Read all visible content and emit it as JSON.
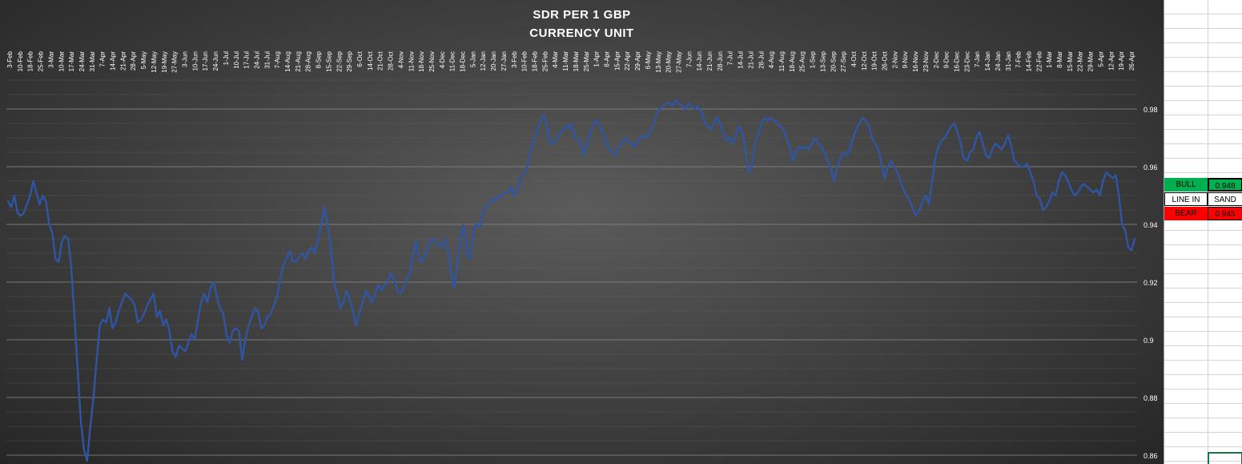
{
  "chart_data": {
    "type": "line",
    "title": "SDR PER 1 GBP",
    "subtitle": "CURRENCY UNIT",
    "xlabel": "",
    "ylabel": "",
    "ylim": [
      0.86,
      0.99
    ],
    "y_ticks": [
      "0.86",
      "0.88",
      "0.9",
      "0.92",
      "0.94",
      "0.96",
      "0.98"
    ],
    "x_ticks": [
      "3-Feb",
      "10-Feb",
      "18-Feb",
      "25-Feb",
      "3-Mar",
      "10-Mar",
      "17-Mar",
      "24-Mar",
      "31-Mar",
      "7-Apr",
      "14-Apr",
      "21-Apr",
      "28-Apr",
      "5-May",
      "12-May",
      "19-May",
      "27-May",
      "3-Jun",
      "10-Jun",
      "17-Jun",
      "24-Jun",
      "1-Jul",
      "10-Jul",
      "17-Jul",
      "24-Jul",
      "31-Jul",
      "7-Aug",
      "14-Aug",
      "21-Aug",
      "28-Aug",
      "8-Sep",
      "15-Sep",
      "22-Sep",
      "29-Sep",
      "6-Oct",
      "14-Oct",
      "21-Oct",
      "28-Oct",
      "4-Nov",
      "11-Nov",
      "18-Nov",
      "25-Nov",
      "4-Dec",
      "11-Dec",
      "18-Dec",
      "5-Jan",
      "12-Jan",
      "20-Jan",
      "27-Jan",
      "3-Feb",
      "10-Feb",
      "18-Feb",
      "25-Feb",
      "4-Mar",
      "11-Mar",
      "18-Mar",
      "25-Mar",
      "1-Apr",
      "8-Apr",
      "15-Apr",
      "22-Apr",
      "29-Apr",
      "6-May",
      "13-May",
      "20-May",
      "27-May",
      "7-Jun",
      "14-Jun",
      "21-Jun",
      "28-Jun",
      "7-Jul",
      "14-Jul",
      "21-Jul",
      "28-Jul",
      "4-Aug",
      "11-Aug",
      "18-Aug",
      "25-Aug",
      "1-Sep",
      "13-Sep",
      "20-Sep",
      "27-Sep",
      "4-Oct",
      "12-Oct",
      "19-Oct",
      "26-Oct",
      "2-Nov",
      "9-Nov",
      "16-Nov",
      "23-Nov",
      "2-Dec",
      "9-Dec",
      "16-Dec",
      "23-Dec",
      "7-Jan",
      "14-Jan",
      "24-Jan",
      "31-Jan",
      "7-Feb",
      "14-Feb",
      "22-Feb",
      "1-Mar",
      "8-Mar",
      "15-Mar",
      "22-Mar",
      "29-Mar",
      "5-Apr",
      "12-Apr",
      "19-Apr",
      "26-Apr"
    ],
    "series": [
      {
        "color": "#2f55a4",
        "y": [
          0.948,
          0.946,
          0.95,
          0.944,
          0.943,
          0.944,
          0.947,
          0.95,
          0.955,
          0.951,
          0.947,
          0.95,
          0.948,
          0.94,
          0.937,
          0.928,
          0.927,
          0.934,
          0.936,
          0.935,
          0.925,
          0.908,
          0.89,
          0.872,
          0.862,
          0.858,
          0.87,
          0.88,
          0.893,
          0.905,
          0.907,
          0.906,
          0.911,
          0.904,
          0.906,
          0.91,
          0.913,
          0.916,
          0.915,
          0.914,
          0.912,
          0.906,
          0.907,
          0.909,
          0.912,
          0.914,
          0.916,
          0.908,
          0.91,
          0.905,
          0.907,
          0.903,
          0.896,
          0.894,
          0.898,
          0.897,
          0.896,
          0.899,
          0.902,
          0.9,
          0.907,
          0.913,
          0.916,
          0.913,
          0.918,
          0.92,
          0.915,
          0.911,
          0.909,
          0.902,
          0.899,
          0.903,
          0.904,
          0.903,
          0.893,
          0.9,
          0.905,
          0.908,
          0.911,
          0.91,
          0.904,
          0.905,
          0.908,
          0.909,
          0.912,
          0.915,
          0.921,
          0.926,
          0.928,
          0.931,
          0.927,
          0.927,
          0.929,
          0.93,
          0.928,
          0.931,
          0.932,
          0.93,
          0.935,
          0.94,
          0.946,
          0.94,
          0.932,
          0.92,
          0.916,
          0.911,
          0.913,
          0.917,
          0.914,
          0.91,
          0.905,
          0.909,
          0.913,
          0.917,
          0.915,
          0.913,
          0.916,
          0.919,
          0.917,
          0.919,
          0.92,
          0.923,
          0.921,
          0.917,
          0.916,
          0.918,
          0.921,
          0.923,
          0.93,
          0.934,
          0.928,
          0.927,
          0.93,
          0.933,
          0.935,
          0.934,
          0.933,
          0.932,
          0.935,
          0.931,
          0.923,
          0.918,
          0.926,
          0.935,
          0.94,
          0.93,
          0.928,
          0.938,
          0.94,
          0.939,
          0.944,
          0.946,
          0.947,
          0.949,
          0.948,
          0.95,
          0.95,
          0.951,
          0.951,
          0.953,
          0.95,
          0.952,
          0.956,
          0.958,
          0.96,
          0.965,
          0.969,
          0.972,
          0.975,
          0.978,
          0.976,
          0.969,
          0.968,
          0.969,
          0.971,
          0.972,
          0.974,
          0.973,
          0.975,
          0.97,
          0.97,
          0.968,
          0.964,
          0.968,
          0.972,
          0.975,
          0.976,
          0.974,
          0.972,
          0.968,
          0.966,
          0.965,
          0.964,
          0.967,
          0.968,
          0.97,
          0.969,
          0.968,
          0.967,
          0.969,
          0.97,
          0.971,
          0.97,
          0.972,
          0.975,
          0.978,
          0.98,
          0.981,
          0.982,
          0.982,
          0.981,
          0.983,
          0.982,
          0.981,
          0.98,
          0.982,
          0.981,
          0.98,
          0.981,
          0.979,
          0.976,
          0.974,
          0.973,
          0.975,
          0.977,
          0.975,
          0.972,
          0.969,
          0.97,
          0.968,
          0.971,
          0.974,
          0.972,
          0.966,
          0.958,
          0.96,
          0.968,
          0.971,
          0.975,
          0.977,
          0.976,
          0.977,
          0.976,
          0.975,
          0.974,
          0.973,
          0.97,
          0.967,
          0.962,
          0.965,
          0.967,
          0.966,
          0.967,
          0.966,
          0.968,
          0.97,
          0.968,
          0.967,
          0.965,
          0.962,
          0.959,
          0.955,
          0.96,
          0.963,
          0.965,
          0.964,
          0.966,
          0.97,
          0.973,
          0.975,
          0.977,
          0.976,
          0.974,
          0.97,
          0.968,
          0.966,
          0.961,
          0.956,
          0.96,
          0.962,
          0.96,
          0.958,
          0.955,
          0.952,
          0.95,
          0.948,
          0.945,
          0.943,
          0.945,
          0.948,
          0.95,
          0.947,
          0.955,
          0.963,
          0.967,
          0.969,
          0.97,
          0.972,
          0.974,
          0.975,
          0.972,
          0.968,
          0.963,
          0.962,
          0.965,
          0.966,
          0.97,
          0.972,
          0.968,
          0.964,
          0.963,
          0.966,
          0.968,
          0.967,
          0.966,
          0.968,
          0.971,
          0.967,
          0.962,
          0.961,
          0.96,
          0.96,
          0.961,
          0.958,
          0.955,
          0.95,
          0.949,
          0.945,
          0.946,
          0.948,
          0.951,
          0.95,
          0.955,
          0.958,
          0.957,
          0.955,
          0.952,
          0.95,
          0.951,
          0.953,
          0.954,
          0.953,
          0.952,
          0.951,
          0.952,
          0.95,
          0.955,
          0.958,
          0.957,
          0.956,
          0.957,
          0.95,
          0.94,
          0.938,
          0.932,
          0.931,
          0.935
        ]
      }
    ],
    "grid": true,
    "legend": "none"
  },
  "sheet": {
    "bull_label": "BULL",
    "bull_value": "0.948",
    "line_label": "LINE IN",
    "line_value": "SAND",
    "bear_label": "BEAR",
    "bear_value": "0.945"
  }
}
